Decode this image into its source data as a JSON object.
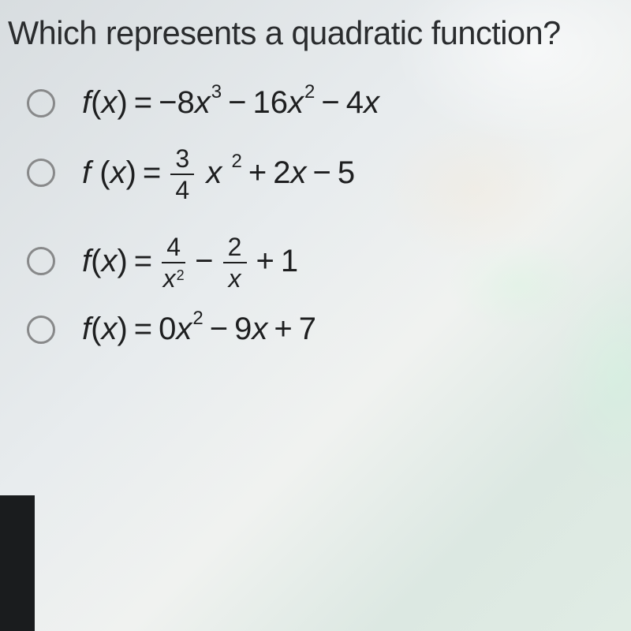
{
  "question": "Which represents a quadratic function?",
  "options": {
    "a": {
      "prefix": "f(x) = ",
      "terms": [
        "−8x",
        "3",
        " − 16x",
        "2",
        " − 4x"
      ]
    },
    "b": {
      "prefix": "f (x) = ",
      "frac": {
        "n": "3",
        "d": "4"
      },
      "terms": [
        " x",
        "2",
        " + 2x − 5"
      ]
    },
    "c": {
      "prefix": "f(x) = ",
      "frac1": {
        "n": "4",
        "d": "x",
        "dsup": "2"
      },
      "mid": " − ",
      "frac2": {
        "n": "2",
        "d": "x"
      },
      "tail": " + 1"
    },
    "d": {
      "prefix": "f(x) = 0x",
      "sup": "2",
      "tail": " − 9x + 7"
    }
  },
  "style": {
    "text_color": "#1e1f20",
    "question_color": "#2a2c2e",
    "radio_border": "#88898a",
    "question_fontsize": 41.5,
    "option_fontsize": 40,
    "sup_fontsize": 24,
    "frac_fontsize": 32,
    "background_gradient": [
      "#d8dde0",
      "#e8ecee",
      "#f0f2f0",
      "#dce8e2",
      "#e0ece4"
    ]
  }
}
